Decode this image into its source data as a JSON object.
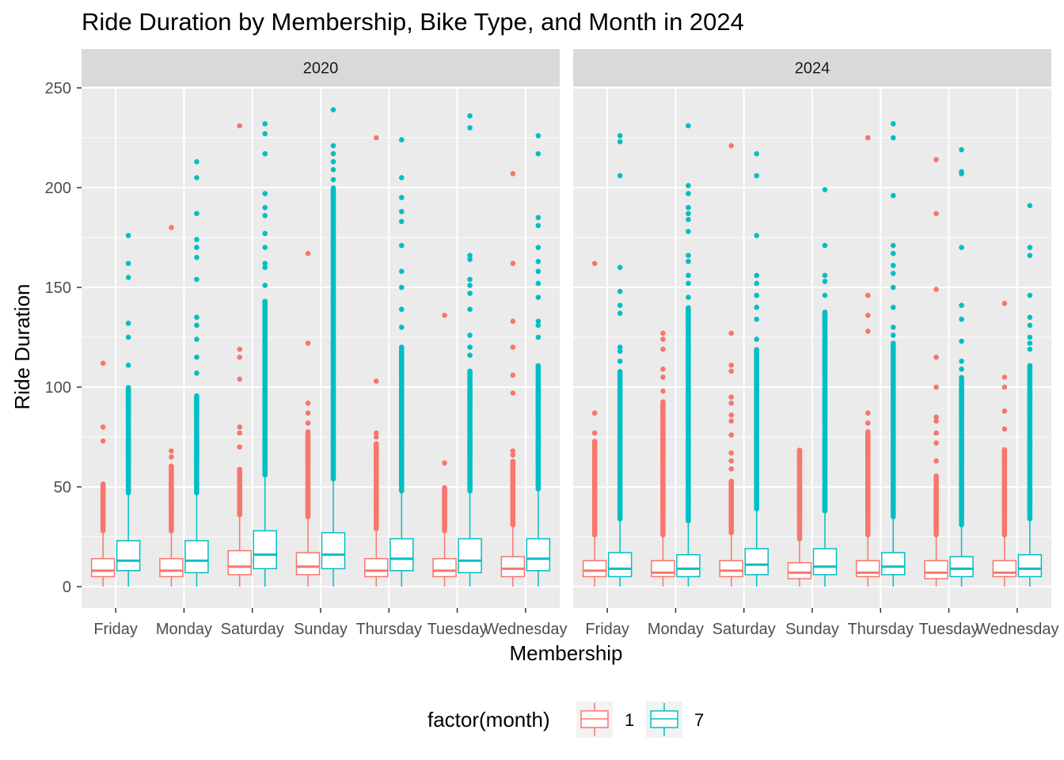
{
  "chart_data": {
    "type": "boxplot",
    "title": "Ride Duration by Membership, Bike Type, and Month in 2024",
    "xlabel": "Membership",
    "ylabel": "Ride Duration",
    "ylim": [
      -10,
      260
    ],
    "yticks": [
      0,
      50,
      100,
      150,
      200,
      250
    ],
    "grid": true,
    "categories": [
      "Friday",
      "Monday",
      "Saturday",
      "Sunday",
      "Thursday",
      "Tuesday",
      "Wednesday"
    ],
    "legend": {
      "title": "factor(month)",
      "position": "bottom",
      "entries": [
        {
          "label": "1",
          "color": "#F8766D"
        },
        {
          "label": "7",
          "color": "#00BFC4"
        }
      ]
    },
    "panels": [
      {
        "label": "2020",
        "series": [
          {
            "name": "1",
            "color": "#F8766D",
            "boxes": [
              {
                "q1": 5,
                "median": 8,
                "q3": 14,
                "lower": 0,
                "upper": 27,
                "outlier_range": [
                  28,
                  52
                ],
                "outliers": [
                  73,
                  80,
                  112
                ]
              },
              {
                "q1": 5,
                "median": 8,
                "q3": 14,
                "lower": 0,
                "upper": 27,
                "outlier_range": [
                  28,
                  61
                ],
                "outliers": [
                  65,
                  68,
                  180
                ]
              },
              {
                "q1": 6,
                "median": 10,
                "q3": 18,
                "lower": 0,
                "upper": 35,
                "outlier_range": [
                  36,
                  59
                ],
                "outliers": [
                  70,
                  77,
                  80,
                  104,
                  115,
                  119,
                  231
                ]
              },
              {
                "q1": 6,
                "median": 10,
                "q3": 17,
                "lower": 0,
                "upper": 34,
                "outlier_range": [
                  35,
                  78
                ],
                "outliers": [
                  82,
                  87,
                  92,
                  122,
                  167
                ]
              },
              {
                "q1": 5,
                "median": 8,
                "q3": 14,
                "lower": 0,
                "upper": 28,
                "outlier_range": [
                  29,
                  72
                ],
                "outliers": [
                  75,
                  77,
                  103,
                  225
                ]
              },
              {
                "q1": 5,
                "median": 8,
                "q3": 14,
                "lower": 0,
                "upper": 27,
                "outlier_range": [
                  28,
                  50
                ],
                "outliers": [
                  62,
                  136
                ]
              },
              {
                "q1": 5,
                "median": 9,
                "q3": 15,
                "lower": 0,
                "upper": 30,
                "outlier_range": [
                  31,
                  63
                ],
                "outliers": [
                  66,
                  68,
                  97,
                  106,
                  120,
                  133,
                  162,
                  207
                ]
              }
            ]
          },
          {
            "name": "7",
            "color": "#00BFC4",
            "boxes": [
              {
                "q1": 8,
                "median": 13,
                "q3": 23,
                "lower": 0,
                "upper": 46,
                "outlier_range": [
                  47,
                  100
                ],
                "outliers": [
                  111,
                  125,
                  132,
                  155,
                  162,
                  176
                ]
              },
              {
                "q1": 7,
                "median": 13,
                "q3": 23,
                "lower": 0,
                "upper": 46,
                "outlier_range": [
                  47,
                  96
                ],
                "outliers": [
                  107,
                  115,
                  124,
                  131,
                  135,
                  154,
                  165,
                  170,
                  174,
                  187,
                  205,
                  213
                ]
              },
              {
                "q1": 9,
                "median": 16,
                "q3": 28,
                "lower": 0,
                "upper": 55,
                "outlier_range": [
                  56,
                  143
                ],
                "outliers": [
                  151,
                  160,
                  162,
                  170,
                  177,
                  186,
                  190,
                  197,
                  217,
                  227,
                  232
                ]
              },
              {
                "q1": 9,
                "median": 16,
                "q3": 27,
                "lower": 0,
                "upper": 53,
                "outlier_range": [
                  54,
                  200
                ],
                "outliers": [
                  204,
                  209,
                  213,
                  217,
                  221,
                  239
                ]
              },
              {
                "q1": 8,
                "median": 14,
                "q3": 24,
                "lower": 0,
                "upper": 47,
                "outlier_range": [
                  48,
                  120
                ],
                "outliers": [
                  130,
                  139,
                  150,
                  158,
                  171,
                  183,
                  188,
                  195,
                  205,
                  224
                ]
              },
              {
                "q1": 7,
                "median": 13,
                "q3": 24,
                "lower": 0,
                "upper": 47,
                "outlier_range": [
                  48,
                  108
                ],
                "outliers": [
                  116,
                  120,
                  126,
                  139,
                  147,
                  151,
                  154,
                  164,
                  166,
                  230,
                  236
                ]
              },
              {
                "q1": 8,
                "median": 14,
                "q3": 24,
                "lower": 0,
                "upper": 48,
                "outlier_range": [
                  49,
                  111
                ],
                "outliers": [
                  125,
                  131,
                  133,
                  145,
                  152,
                  158,
                  163,
                  170,
                  181,
                  185,
                  217,
                  226
                ]
              }
            ]
          }
        ]
      },
      {
        "label": "2024",
        "series": [
          {
            "name": "1",
            "color": "#F8766D",
            "boxes": [
              {
                "q1": 5,
                "median": 8,
                "q3": 13,
                "lower": 0,
                "upper": 25,
                "outlier_range": [
                  26,
                  73
                ],
                "outliers": [
                  77,
                  87,
                  162
                ]
              },
              {
                "q1": 5,
                "median": 7,
                "q3": 13,
                "lower": 0,
                "upper": 25,
                "outlier_range": [
                  26,
                  93
                ],
                "outliers": [
                  98,
                  105,
                  109,
                  119,
                  124,
                  127
                ]
              },
              {
                "q1": 5,
                "median": 8,
                "q3": 13,
                "lower": 0,
                "upper": 26,
                "outlier_range": [
                  27,
                  53
                ],
                "outliers": [
                  59,
                  63,
                  67,
                  76,
                  83,
                  86,
                  92,
                  95,
                  108,
                  111,
                  127,
                  221
                ]
              },
              {
                "q1": 4,
                "median": 7,
                "q3": 12,
                "lower": 0,
                "upper": 23,
                "outlier_range": [
                  24,
                  69
                ],
                "outliers": []
              },
              {
                "q1": 5,
                "median": 7,
                "q3": 13,
                "lower": 0,
                "upper": 25,
                "outlier_range": [
                  26,
                  78
                ],
                "outliers": [
                  82,
                  87,
                  128,
                  136,
                  146,
                  225
                ]
              },
              {
                "q1": 4,
                "median": 7,
                "q3": 13,
                "lower": 0,
                "upper": 25,
                "outlier_range": [
                  26,
                  56
                ],
                "outliers": [
                  63,
                  72,
                  77,
                  83,
                  85,
                  100,
                  115,
                  149,
                  187,
                  214
                ]
              },
              {
                "q1": 5,
                "median": 7,
                "q3": 13,
                "lower": 0,
                "upper": 25,
                "outlier_range": [
                  26,
                  69
                ],
                "outliers": [
                  79,
                  88,
                  100,
                  105,
                  142
                ]
              }
            ]
          },
          {
            "name": "7",
            "color": "#00BFC4",
            "boxes": [
              {
                "q1": 5,
                "median": 9,
                "q3": 17,
                "lower": 0,
                "upper": 33,
                "outlier_range": [
                  34,
                  108
                ],
                "outliers": [
                  113,
                  118,
                  120,
                  137,
                  141,
                  148,
                  160,
                  206,
                  223,
                  226
                ]
              },
              {
                "q1": 5,
                "median": 9,
                "q3": 16,
                "lower": 0,
                "upper": 32,
                "outlier_range": [
                  33,
                  140
                ],
                "outliers": [
                  145,
                  152,
                  156,
                  163,
                  166,
                  178,
                  184,
                  187,
                  190,
                  197,
                  201,
                  231
                ]
              },
              {
                "q1": 6,
                "median": 11,
                "q3": 19,
                "lower": 0,
                "upper": 38,
                "outlier_range": [
                  39,
                  119
                ],
                "outliers": [
                  124,
                  134,
                  140,
                  146,
                  152,
                  156,
                  176,
                  206,
                  217
                ]
              },
              {
                "q1": 6,
                "median": 10,
                "q3": 19,
                "lower": 0,
                "upper": 37,
                "outlier_range": [
                  38,
                  138
                ],
                "outliers": [
                  146,
                  153,
                  156,
                  171,
                  199
                ]
              },
              {
                "q1": 6,
                "median": 10,
                "q3": 17,
                "lower": 0,
                "upper": 34,
                "outlier_range": [
                  35,
                  122
                ],
                "outliers": [
                  126,
                  130,
                  140,
                  150,
                  157,
                  161,
                  167,
                  171,
                  196,
                  225,
                  232
                ]
              },
              {
                "q1": 5,
                "median": 9,
                "q3": 15,
                "lower": 0,
                "upper": 30,
                "outlier_range": [
                  31,
                  105
                ],
                "outliers": [
                  109,
                  113,
                  123,
                  134,
                  141,
                  170,
                  207,
                  208,
                  219
                ]
              },
              {
                "q1": 5,
                "median": 9,
                "q3": 16,
                "lower": 0,
                "upper": 33,
                "outlier_range": [
                  34,
                  111
                ],
                "outliers": [
                  119,
                  122,
                  125,
                  131,
                  135,
                  146,
                  166,
                  170,
                  191
                ]
              }
            ]
          }
        ]
      }
    ]
  }
}
